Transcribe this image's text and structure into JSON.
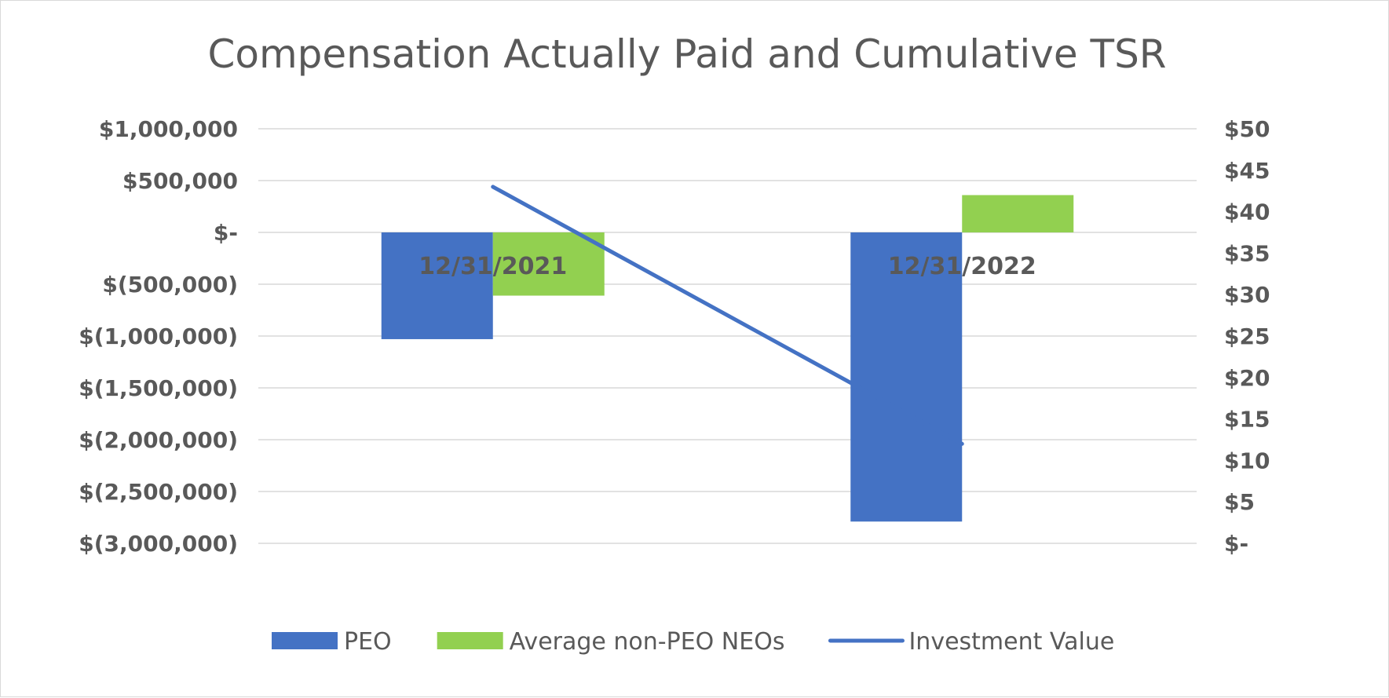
{
  "chart_data": {
    "type": "bar",
    "title": "Compensation Actually Paid and Cumulative TSR",
    "categories": [
      "12/31/2021",
      "12/31/2022"
    ],
    "series": [
      {
        "name": "PEO",
        "kind": "bar",
        "axis": "left",
        "color": "#4472c4",
        "values": [
          -1030000,
          -2790000
        ]
      },
      {
        "name": "Average non-PEO NEOs",
        "kind": "bar",
        "axis": "left",
        "color": "#92d050",
        "values": [
          -610000,
          360000
        ]
      },
      {
        "name": "Investment Value",
        "kind": "line",
        "axis": "right",
        "color": "#4472c4",
        "values": [
          43,
          12
        ]
      }
    ],
    "y_left": {
      "ylim": [
        -3000000,
        1000000
      ],
      "ticks": [
        1000000,
        500000,
        0,
        -500000,
        -1000000,
        -1500000,
        -2000000,
        -2500000,
        -3000000
      ],
      "tick_labels": [
        "$1,000,000",
        "$500,000",
        "$-",
        "$(500,000)",
        "$(1,000,000)",
        "$(1,500,000)",
        "$(2,000,000)",
        "$(2,500,000)",
        "$(3,000,000)"
      ]
    },
    "y_right": {
      "ylim": [
        0,
        50
      ],
      "ticks": [
        50,
        45,
        40,
        35,
        30,
        25,
        20,
        15,
        10,
        5,
        0
      ],
      "tick_labels": [
        "$50",
        "$45",
        "$40",
        "$35",
        "$30",
        "$25",
        "$20",
        "$15",
        "$10",
        "$5",
        "$-"
      ]
    },
    "grid": true,
    "legend_position": "bottom"
  }
}
